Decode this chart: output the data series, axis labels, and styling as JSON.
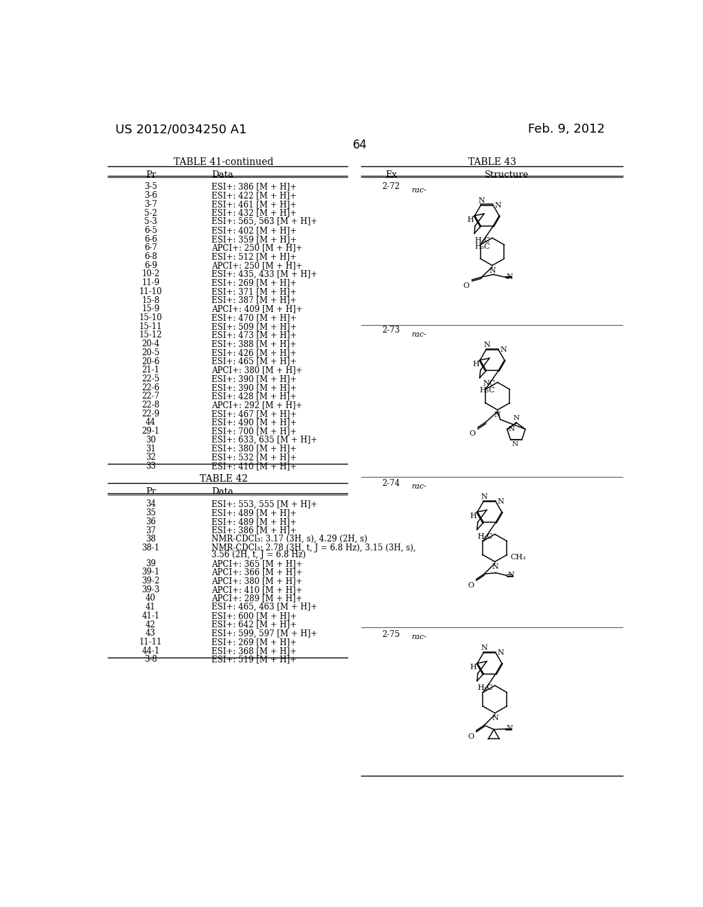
{
  "background_color": "#ffffff",
  "page_number": "64",
  "header_left": "US 2012/0034250 A1",
  "header_right": "Feb. 9, 2012",
  "table41_title": "TABLE 41-continued",
  "table41_col1": "Pr",
  "table41_col2": "Data",
  "table41_rows": [
    [
      "3-5",
      "ESI+: 386 [M + H]+"
    ],
    [
      "3-6",
      "ESI+: 422 [M + H]+"
    ],
    [
      "3-7",
      "ESI+: 461 [M + H]+"
    ],
    [
      "5-2",
      "ESI+: 432 [M + H]+"
    ],
    [
      "5-3",
      "ESI+: 565, 563 [M + H]+"
    ],
    [
      "6-5",
      "ESI+: 402 [M + H]+"
    ],
    [
      "6-6",
      "ESI+: 359 [M + H]+"
    ],
    [
      "6-7",
      "APCI+: 250 [M + H]+"
    ],
    [
      "6-8",
      "ESI+: 512 [M + H]+"
    ],
    [
      "6-9",
      "APCI+: 250 [M + H]+"
    ],
    [
      "10-2",
      "ESI+: 435, 433 [M + H]+"
    ],
    [
      "11-9",
      "ESI+: 269 [M + H]+"
    ],
    [
      "11-10",
      "ESI+: 371 [M + H]+"
    ],
    [
      "15-8",
      "ESI+: 387 [M + H]+"
    ],
    [
      "15-9",
      "APCI+: 409 [M + H]+"
    ],
    [
      "15-10",
      "ESI+: 470 [M + H]+"
    ],
    [
      "15-11",
      "ESI+: 509 [M + H]+"
    ],
    [
      "15-12",
      "ESI+: 473 [M + H]+"
    ],
    [
      "20-4",
      "ESI+: 388 [M + H]+"
    ],
    [
      "20-5",
      "ESI+: 426 [M + H]+"
    ],
    [
      "20-6",
      "ESI+: 465 [M + H]+"
    ],
    [
      "21-1",
      "APCI+: 380 [M + H]+"
    ],
    [
      "22-5",
      "ESI+: 390 [M + H]+"
    ],
    [
      "22-6",
      "ESI+: 390 [M + H]+"
    ],
    [
      "22-7",
      "ESI+: 428 [M + H]+"
    ],
    [
      "22-8",
      "APCI+: 292 [M + H]+"
    ],
    [
      "22-9",
      "ESI+: 467 [M + H]+"
    ],
    [
      "44",
      "ESI+: 490 [M + H]+"
    ],
    [
      "29-1",
      "ESI+: 700 [M + H]+"
    ],
    [
      "30",
      "ESI+: 633, 635 [M + H]+"
    ],
    [
      "31",
      "ESI+: 380 [M + H]+"
    ],
    [
      "32",
      "ESI+: 532 [M + H]+"
    ],
    [
      "33",
      "ESI+: 410 [M + H]+"
    ]
  ],
  "table42_title": "TABLE 42",
  "table42_col1": "Pr",
  "table42_col2": "Data",
  "table42_rows": [
    [
      "34",
      "ESI+: 553, 555 [M + H]+"
    ],
    [
      "35",
      "ESI+: 489 [M + H]+"
    ],
    [
      "36",
      "ESI+: 489 [M + H]+"
    ],
    [
      "37",
      "ESI+: 386 [M + H]+"
    ],
    [
      "38",
      "NMR-CDCl₃: 3.17 (3H, s), 4.29 (2H, s)"
    ],
    [
      "38-1",
      "NMR-CDCl₃: 2.78 (3H, t, J = 6.8 Hz), 3.15 (3H, s),\n3.56 (2H, t, J = 6.8 Hz)"
    ],
    [
      "39",
      "APCI+: 365 [M + H]+"
    ],
    [
      "39-1",
      "APCI+: 366 [M + H]+"
    ],
    [
      "39-2",
      "APCI+: 380 [M + H]+"
    ],
    [
      "39-3",
      "APCI+: 410 [M + H]+"
    ],
    [
      "40",
      "APCI+: 289 [M + H]+"
    ],
    [
      "41",
      "ESI+: 465, 463 [M + H]+"
    ],
    [
      "41-1",
      "ESI+: 600 [M + H]+"
    ],
    [
      "42",
      "ESI+: 642 [M + H]+"
    ],
    [
      "43",
      "ESI+: 599, 597 [M + H]+"
    ],
    [
      "11-11",
      "ESI+: 269 [M + H]+"
    ],
    [
      "44-1",
      "ESI+: 368 [M + H]+"
    ],
    [
      "3-8",
      "ESI+: 519 [M + H]+"
    ]
  ],
  "table43_title": "TABLE 43",
  "table43_col1": "Ex",
  "table43_col2": "Structure"
}
